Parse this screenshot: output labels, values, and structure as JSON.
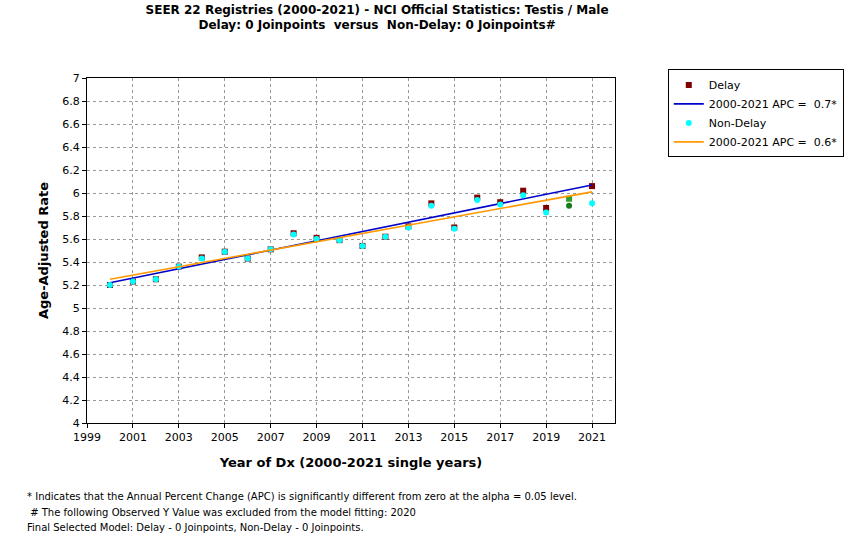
{
  "chart_data": {
    "type": "scatter",
    "title": "SEER 22 Registries (2000-2021) - NCI Official Statistics: Testis / Male",
    "subtitle": "Delay: 0 Joinpoints  versus  Non-Delay: 0 Joinpoints#",
    "x_label": "Year of Dx (2000-2021 single years)",
    "y_label": "Age-Adjusted Rate",
    "x": [
      2000,
      2001,
      2002,
      2003,
      2004,
      2005,
      2006,
      2007,
      2008,
      2009,
      2010,
      2011,
      2012,
      2013,
      2014,
      2015,
      2016,
      2017,
      2018,
      2019,
      2020,
      2021
    ],
    "series": [
      {
        "name": "Delay",
        "type": "scatter",
        "marker": "square",
        "color": "#800000",
        "colors": [
          "#800000",
          "#800000",
          "#800000",
          "#800000",
          "#800000",
          "#800000",
          "#800000",
          "#800000",
          "#800000",
          "#800000",
          "#800000",
          "#800000",
          "#800000",
          "#800000",
          "#800000",
          "#800000",
          "#800000",
          "#800000",
          "#800000",
          "#800000",
          "#2e9e2e",
          "#800000"
        ],
        "values": [
          5.2,
          5.23,
          5.25,
          5.36,
          5.44,
          5.49,
          5.43,
          5.51,
          5.65,
          5.61,
          5.59,
          5.54,
          5.62,
          5.71,
          5.91,
          5.7,
          5.96,
          5.92,
          6.02,
          5.87,
          5.95,
          6.06
        ]
      },
      {
        "name": "2000-2021 APC =  0.7*",
        "type": "line",
        "color": "#0000cc",
        "line_style": "solid",
        "x": [
          2000,
          2021
        ],
        "values": [
          5.22,
          6.07
        ]
      },
      {
        "name": "Non-Delay",
        "type": "scatter",
        "marker": "circle",
        "color": "#00ffff",
        "colors": [
          "#00ffff",
          "#00ffff",
          "#00ffff",
          "#00ffff",
          "#00ffff",
          "#00ffff",
          "#00ffff",
          "#00ffff",
          "#00ffff",
          "#00ffff",
          "#00ffff",
          "#00ffff",
          "#00ffff",
          "#00ffff",
          "#00ffff",
          "#00ffff",
          "#00ffff",
          "#00ffff",
          "#00ffff",
          "#00ffff",
          "#1b7a1b",
          "#00ffff"
        ],
        "values": [
          5.2,
          5.23,
          5.25,
          5.36,
          5.43,
          5.49,
          5.43,
          5.51,
          5.64,
          5.6,
          5.59,
          5.54,
          5.62,
          5.7,
          5.89,
          5.69,
          5.94,
          5.9,
          5.98,
          5.83,
          5.89,
          5.91
        ]
      },
      {
        "name": "2000-2021 APC =  0.6*",
        "type": "line",
        "color": "#ff9900",
        "line_style": "solid",
        "x": [
          2000,
          2021
        ],
        "values": [
          5.25,
          6.01
        ]
      }
    ],
    "xlim": [
      1999,
      2022
    ],
    "xticks": [
      1999,
      2001,
      2003,
      2005,
      2007,
      2009,
      2011,
      2013,
      2015,
      2017,
      2019,
      2021
    ],
    "ylim": [
      4,
      7
    ],
    "yticks": [
      4,
      4.2,
      4.4,
      4.6,
      4.8,
      5,
      5.2,
      5.4,
      5.6,
      5.8,
      6,
      6.2,
      6.4,
      6.6,
      6.8,
      7
    ],
    "grid": true,
    "legend": "top right",
    "notes": [
      "* Indicates that the Annual Percent Change (APC) is significantly different from zero at the alpha = 0.05 level.",
      " # The following Observed Y Value was excluded from the model fitting: 2020",
      "Final Selected Model: Delay - 0 Joinpoints, Non-Delay - 0 Joinpoints."
    ]
  }
}
